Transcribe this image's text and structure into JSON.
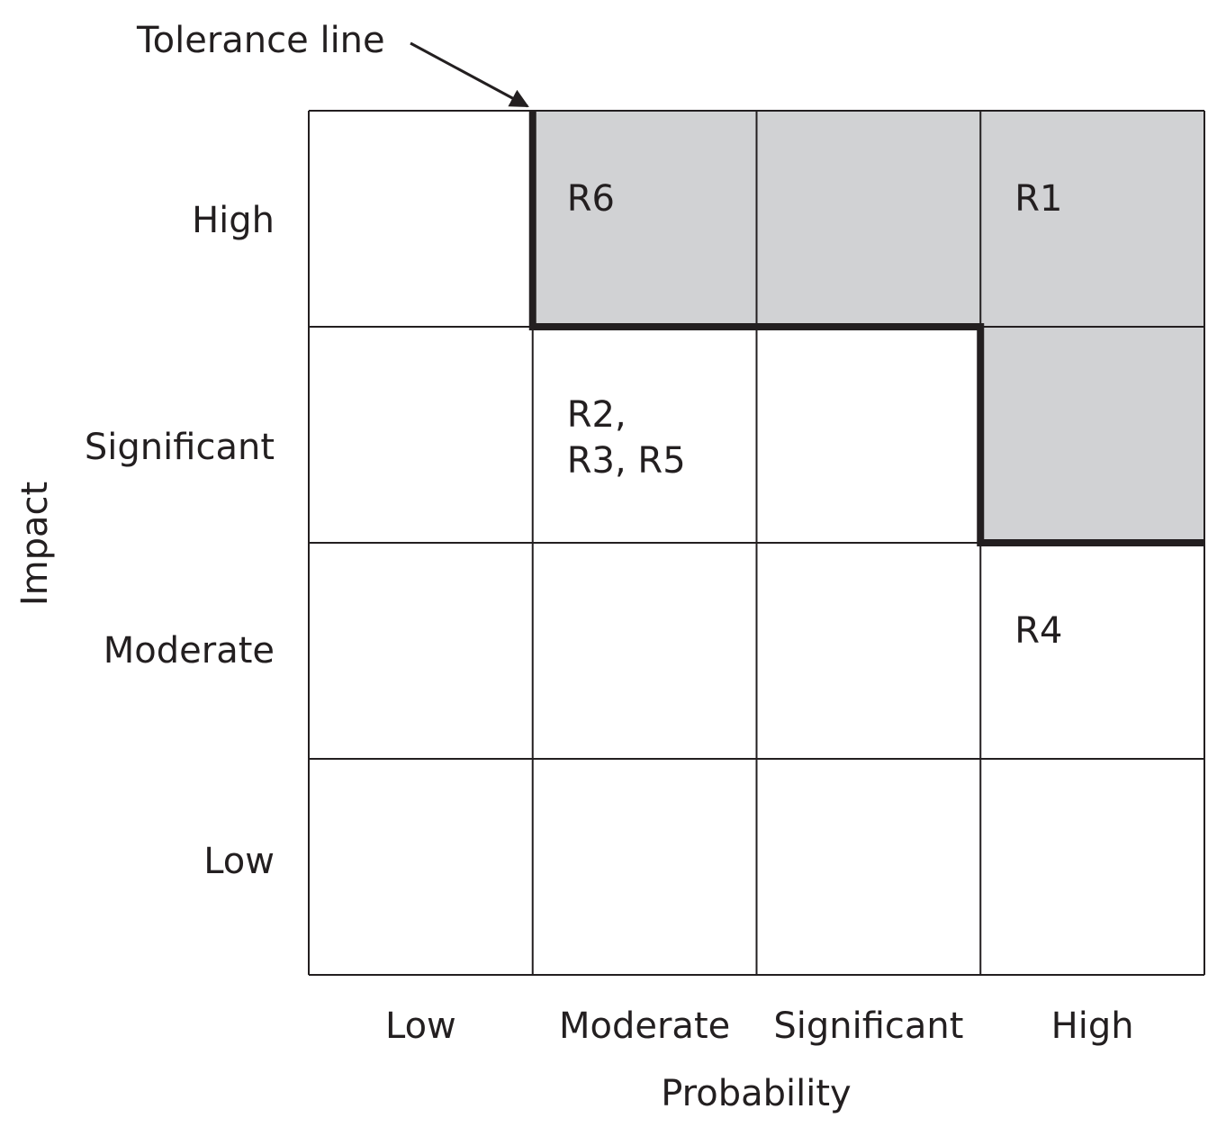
{
  "annotation": {
    "text": "Tolerance line"
  },
  "axes": {
    "x_title": "Probability",
    "y_title": "Impact",
    "x_levels": [
      "Low",
      "Moderate",
      "Significant",
      "High"
    ],
    "y_levels": [
      "High",
      "Significant",
      "Moderate",
      "Low"
    ]
  },
  "cells": [
    {
      "row": 0,
      "col": 1,
      "lines": [
        "R6"
      ]
    },
    {
      "row": 0,
      "col": 3,
      "lines": [
        "R1"
      ]
    },
    {
      "row": 1,
      "col": 1,
      "lines": [
        "R2,",
        "R3, R5"
      ]
    },
    {
      "row": 2,
      "col": 3,
      "lines": [
        "R4"
      ]
    }
  ],
  "shaded_cells": [
    {
      "row": 0,
      "col": 1
    },
    {
      "row": 0,
      "col": 2
    },
    {
      "row": 0,
      "col": 3
    },
    {
      "row": 1,
      "col": 3
    }
  ],
  "colors": {
    "shade": "#d1d2d4",
    "grid": "#231f20",
    "tolerance_line": "#231f20",
    "text": "#231f20"
  }
}
